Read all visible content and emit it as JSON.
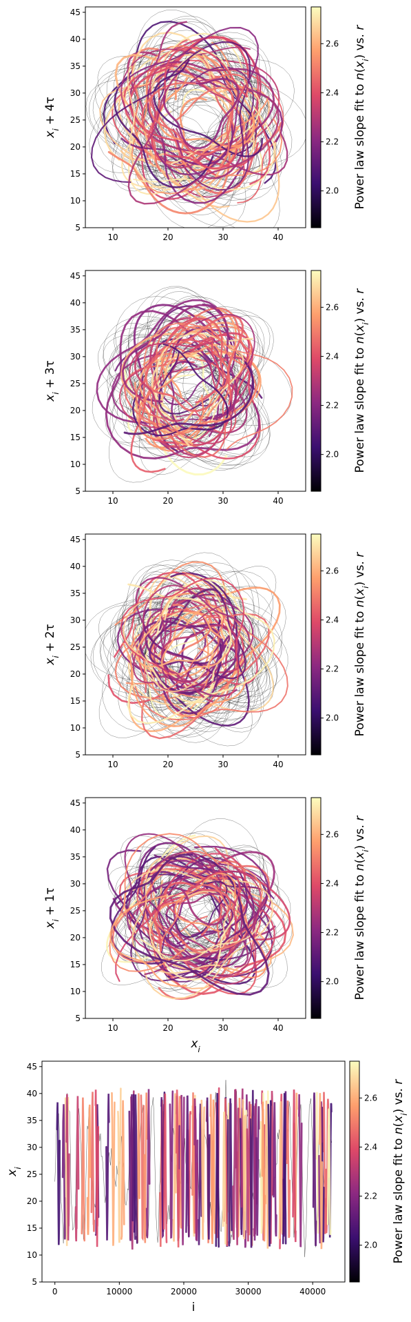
{
  "colorbar": {
    "label": "Power law slope fit to n(xi) vs. r",
    "ticks": [
      2.0,
      2.2,
      2.4,
      2.6
    ],
    "range": [
      1.85,
      2.75
    ],
    "colormap": [
      "#000004",
      "#3b0f70",
      "#8c2981",
      "#de4968",
      "#fe9f6d",
      "#fcfdbf"
    ]
  },
  "chart_data": [
    {
      "type": "line",
      "variant": "delay-embedding",
      "ylabel": "x_i + 4τ",
      "xlabel": "",
      "xlim": [
        5,
        45
      ],
      "ylim": [
        5,
        46
      ],
      "xticks": [
        10,
        20,
        30,
        40
      ],
      "yticks": [
        5,
        10,
        15,
        20,
        25,
        30,
        35,
        40,
        45
      ],
      "attractor_center": [
        25,
        25
      ],
      "attractor_spread": [
        11,
        11
      ]
    },
    {
      "type": "line",
      "variant": "delay-embedding",
      "ylabel": "x_i + 3τ",
      "xlabel": "",
      "xlim": [
        5,
        45
      ],
      "ylim": [
        5,
        46
      ],
      "xticks": [
        10,
        20,
        30,
        40
      ],
      "yticks": [
        5,
        10,
        15,
        20,
        25,
        30,
        35,
        40,
        45
      ],
      "attractor_center": [
        24,
        25
      ],
      "attractor_spread": [
        10,
        10
      ]
    },
    {
      "type": "line",
      "variant": "delay-embedding",
      "ylabel": "x_i + 2τ",
      "xlabel": "",
      "xlim": [
        5,
        45
      ],
      "ylim": [
        5,
        46
      ],
      "xticks": [
        10,
        20,
        30,
        40
      ],
      "yticks": [
        5,
        10,
        15,
        20,
        25,
        30,
        35,
        40,
        45
      ],
      "attractor_center": [
        24,
        25
      ],
      "attractor_spread": [
        10,
        10
      ]
    },
    {
      "type": "line",
      "variant": "delay-embedding",
      "ylabel": "x_i + 1τ",
      "xlabel": "x_i",
      "xlim": [
        5,
        45
      ],
      "ylim": [
        5,
        46
      ],
      "xticks": [
        10,
        20,
        30,
        40
      ],
      "yticks": [
        5,
        10,
        15,
        20,
        25,
        30,
        35,
        40,
        45
      ],
      "attractor_center": [
        25,
        25
      ],
      "attractor_spread": [
        10,
        9
      ]
    },
    {
      "type": "line",
      "variant": "time-series",
      "ylabel": "x_i",
      "xlabel": "i",
      "xlim": [
        -2000,
        45000
      ],
      "ylim": [
        5,
        46
      ],
      "xticks": [
        0,
        10000,
        20000,
        30000,
        40000
      ],
      "yticks": [
        5,
        10,
        15,
        20,
        25,
        30,
        35,
        40,
        45
      ],
      "n_points": 43000
    }
  ]
}
